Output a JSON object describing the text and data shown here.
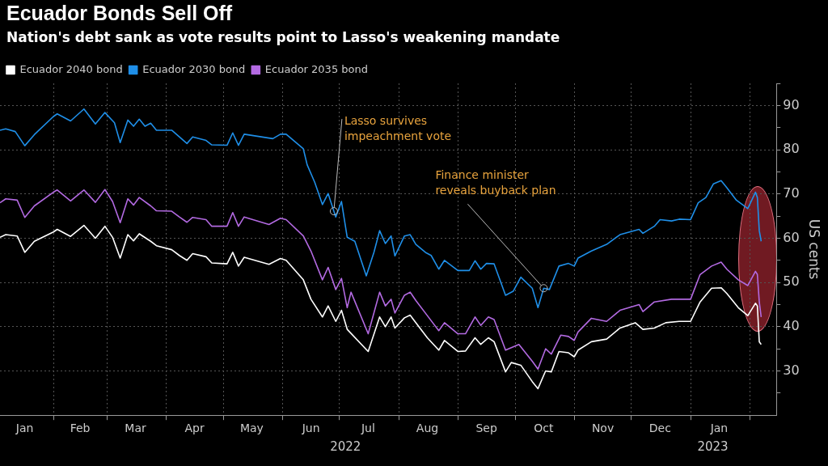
{
  "chart_data": {
    "type": "line",
    "title": "Ecuador Bonds Sell Off",
    "subtitle": "Nation's debt sank as vote results point to Lasso's weakening mandate",
    "ylabel": "US cents",
    "xlim": [
      "2022-01-04",
      "2023-02-15"
    ],
    "xticks": [
      {
        "value": "2022-01-17",
        "label": "Jan"
      },
      {
        "value": "2022-02-01",
        "label": null
      },
      {
        "value": "2022-02-15",
        "label": "Feb"
      },
      {
        "value": "2022-03-01",
        "label": null
      },
      {
        "value": "2022-03-16",
        "label": "Mar"
      },
      {
        "value": "2022-04-01",
        "label": null
      },
      {
        "value": "2022-04-16",
        "label": "Apr"
      },
      {
        "value": "2022-05-01",
        "label": null
      },
      {
        "value": "2022-05-16",
        "label": "May"
      },
      {
        "value": "2022-06-01",
        "label": null
      },
      {
        "value": "2022-06-16",
        "label": "Jun"
      },
      {
        "value": "2022-07-01",
        "label": null
      },
      {
        "value": "2022-07-16",
        "label": "Jul"
      },
      {
        "value": "2022-08-01",
        "label": null
      },
      {
        "value": "2022-08-16",
        "label": "Aug"
      },
      {
        "value": "2022-09-01",
        "label": null
      },
      {
        "value": "2022-09-16",
        "label": "Sep"
      },
      {
        "value": "2022-10-01",
        "label": null
      },
      {
        "value": "2022-10-16",
        "label": "Oct"
      },
      {
        "value": "2022-11-01",
        "label": null
      },
      {
        "value": "2022-11-16",
        "label": "Nov"
      },
      {
        "value": "2022-12-01",
        "label": null
      },
      {
        "value": "2022-12-16",
        "label": "Dec"
      },
      {
        "value": "2023-01-01",
        "label": null
      },
      {
        "value": "2023-01-16",
        "label": "Jan"
      },
      {
        "value": "2023-02-01",
        "label": null
      }
    ],
    "ylim": [
      20,
      95
    ],
    "yticks": [
      {
        "value": 25,
        "label": null
      },
      30,
      {
        "value": 35,
        "label": null
      },
      40,
      {
        "value": 45,
        "label": null
      },
      50,
      {
        "value": 55,
        "label": null
      },
      60,
      {
        "value": 65,
        "label": null
      },
      70,
      {
        "value": 75,
        "label": null
      },
      80,
      {
        "value": 85,
        "label": null
      },
      90,
      {
        "value": 95,
        "label": null
      }
    ],
    "grid": true,
    "legend": "top left",
    "marker": "none",
    "line_style": "solid",
    "series": [
      {
        "name": "Ecuador 2040 bond",
        "color": "#ffffff",
        "x": [
          "2022-01-04",
          "2022-01-07",
          "2022-01-13",
          "2022-01-17",
          "2022-01-22",
          "2022-02-01",
          "2022-02-03",
          "2022-02-10",
          "2022-02-17",
          "2022-02-23",
          "2022-02-28",
          "2022-03-04",
          "2022-03-08",
          "2022-03-12",
          "2022-03-15",
          "2022-03-18",
          "2022-03-24",
          "2022-03-27",
          "2022-04-04",
          "2022-04-08",
          "2022-04-12",
          "2022-04-15",
          "2022-04-22",
          "2022-04-25",
          "2022-05-03",
          "2022-05-06",
          "2022-05-09",
          "2022-05-12",
          "2022-05-25",
          "2022-05-31",
          "2022-06-03",
          "2022-06-12",
          "2022-06-16",
          "2022-06-22",
          "2022-06-25",
          "2022-06-29",
          "2022-07-02",
          "2022-07-05",
          "2022-07-16",
          "2022-07-22",
          "2022-07-25",
          "2022-07-28",
          "2022-07-30",
          "2022-08-04",
          "2022-08-07",
          "2022-08-16",
          "2022-08-22",
          "2022-08-25",
          "2022-09-01",
          "2022-09-05",
          "2022-09-10",
          "2022-09-13",
          "2022-09-17",
          "2022-09-20",
          "2022-09-26",
          "2022-09-29",
          "2022-10-04",
          "2022-10-10",
          "2022-10-13",
          "2022-10-17",
          "2022-10-20",
          "2022-10-24",
          "2022-10-29",
          "2022-11-01",
          "2022-11-03",
          "2022-11-10",
          "2022-11-18",
          "2022-11-25",
          "2022-12-03",
          "2022-12-07",
          "2022-12-13",
          "2022-12-19",
          "2022-12-26",
          "2023-01-01",
          "2023-01-06",
          "2023-01-12",
          "2023-01-17",
          "2023-01-20",
          "2023-01-26",
          "2023-01-31",
          "2023-02-04",
          "2023-02-05",
          "2023-02-06",
          "2023-02-07"
        ],
        "values": [
          60.2,
          60.8,
          60.5,
          56.8,
          59.3,
          61.4,
          62,
          60.4,
          62.9,
          60,
          62.7,
          60.2,
          55.5,
          60.8,
          59.4,
          61,
          59.3,
          58.3,
          57.4,
          56.1,
          55,
          56.5,
          55.8,
          54.4,
          54.2,
          56.8,
          53.7,
          55.7,
          54.1,
          55.4,
          55,
          50.6,
          46.2,
          42.2,
          44.7,
          41.2,
          43.7,
          39.4,
          34.4,
          42.2,
          40,
          42.2,
          39.7,
          42,
          42.6,
          37.5,
          34.7,
          36.9,
          34.4,
          34.5,
          37.5,
          36,
          37.5,
          36.6,
          29.8,
          31.9,
          31.3,
          27.6,
          26,
          30,
          29.8,
          34.4,
          34.1,
          33.2,
          34.7,
          36.6,
          37.2,
          39.7,
          40.9,
          39.4,
          39.7,
          40.9,
          41.2,
          41.2,
          45.6,
          48.7,
          48.8,
          47.5,
          44.3,
          42.5,
          45.3,
          44.7,
          36.6,
          36
        ]
      },
      {
        "name": "Ecuador 2030 bond",
        "color": "#1f8fe8",
        "x": [
          "2022-01-04",
          "2022-01-07",
          "2022-01-12",
          "2022-01-17",
          "2022-01-22",
          "2022-02-01",
          "2022-02-03",
          "2022-02-10",
          "2022-02-17",
          "2022-02-23",
          "2022-02-28",
          "2022-03-05",
          "2022-03-08",
          "2022-03-12",
          "2022-03-15",
          "2022-03-18",
          "2022-03-21",
          "2022-03-24",
          "2022-03-27",
          "2022-04-04",
          "2022-04-08",
          "2022-04-12",
          "2022-04-15",
          "2022-04-22",
          "2022-04-25",
          "2022-05-03",
          "2022-05-06",
          "2022-05-09",
          "2022-05-12",
          "2022-05-27",
          "2022-05-31",
          "2022-06-03",
          "2022-06-12",
          "2022-06-14",
          "2022-06-18",
          "2022-06-22",
          "2022-06-25",
          "2022-06-28",
          "2022-06-29",
          "2022-07-02",
          "2022-07-05",
          "2022-07-09",
          "2022-07-15",
          "2022-07-19",
          "2022-07-22",
          "2022-07-25",
          "2022-07-28",
          "2022-07-30",
          "2022-08-04",
          "2022-08-07",
          "2022-08-10",
          "2022-08-15",
          "2022-08-18",
          "2022-08-22",
          "2022-08-25",
          "2022-09-01",
          "2022-09-07",
          "2022-09-10",
          "2022-09-13",
          "2022-09-16",
          "2022-09-20",
          "2022-09-26",
          "2022-09-30",
          "2022-10-04",
          "2022-10-10",
          "2022-10-13",
          "2022-10-16",
          "2022-10-19",
          "2022-10-24",
          "2022-10-29",
          "2022-11-01",
          "2022-11-03",
          "2022-11-10",
          "2022-11-18",
          "2022-11-25",
          "2022-12-05",
          "2022-12-07",
          "2022-12-13",
          "2022-12-16",
          "2022-12-22",
          "2022-12-26",
          "2023-01-01",
          "2023-01-05",
          "2023-01-09",
          "2023-01-13",
          "2023-01-17",
          "2023-01-20",
          "2023-01-25",
          "2023-01-31",
          "2023-02-04",
          "2023-02-05",
          "2023-02-06",
          "2023-02-07"
        ],
        "values": [
          84.4,
          84.7,
          84.1,
          80.9,
          83.4,
          87.5,
          88.1,
          86.5,
          89.2,
          85.8,
          88.4,
          86.1,
          81.6,
          86.7,
          85.3,
          86.9,
          85.3,
          86,
          84.4,
          84.4,
          82.9,
          81.4,
          82.9,
          82.1,
          81.1,
          81,
          83.8,
          81,
          83.5,
          82.5,
          83.5,
          83.5,
          80.2,
          76.6,
          72.6,
          67.6,
          70.1,
          66.1,
          64.8,
          68.3,
          60.2,
          59.3,
          51.5,
          56.8,
          61.7,
          58.8,
          60.5,
          56,
          60.5,
          60.8,
          58.6,
          56.8,
          56.1,
          53,
          55,
          52.7,
          52.7,
          54.9,
          53,
          54.3,
          54.2,
          47.1,
          48,
          51.2,
          48.7,
          44.3,
          48.7,
          48.4,
          53.7,
          54.3,
          53.7,
          55.5,
          57.1,
          58.6,
          60.8,
          62,
          61.1,
          62.7,
          64.2,
          63.9,
          64.3,
          64.2,
          68,
          69.2,
          72.3,
          73,
          71.4,
          68.6,
          66.7,
          70.4,
          69.2,
          61.7,
          59.3
        ]
      },
      {
        "name": "Ecuador 2035 bond",
        "color": "#b36ae2",
        "x": [
          "2022-01-04",
          "2022-01-07",
          "2022-01-13",
          "2022-01-17",
          "2022-01-22",
          "2022-02-01",
          "2022-02-03",
          "2022-02-10",
          "2022-02-17",
          "2022-02-23",
          "2022-02-28",
          "2022-03-04",
          "2022-03-08",
          "2022-03-12",
          "2022-03-15",
          "2022-03-18",
          "2022-03-24",
          "2022-03-27",
          "2022-04-04",
          "2022-04-08",
          "2022-04-12",
          "2022-04-15",
          "2022-04-22",
          "2022-04-25",
          "2022-05-03",
          "2022-05-06",
          "2022-05-09",
          "2022-05-12",
          "2022-05-25",
          "2022-05-31",
          "2022-06-03",
          "2022-06-12",
          "2022-06-16",
          "2022-06-22",
          "2022-06-25",
          "2022-06-29",
          "2022-07-02",
          "2022-07-05",
          "2022-07-07",
          "2022-07-16",
          "2022-07-22",
          "2022-07-25",
          "2022-07-28",
          "2022-07-30",
          "2022-08-04",
          "2022-08-07",
          "2022-08-10",
          "2022-08-16",
          "2022-08-22",
          "2022-08-25",
          "2022-09-01",
          "2022-09-05",
          "2022-09-10",
          "2022-09-13",
          "2022-09-17",
          "2022-09-20",
          "2022-09-26",
          "2022-10-03",
          "2022-10-10",
          "2022-10-13",
          "2022-10-17",
          "2022-10-20",
          "2022-10-25",
          "2022-10-29",
          "2022-11-01",
          "2022-11-03",
          "2022-11-10",
          "2022-11-18",
          "2022-11-25",
          "2022-12-05",
          "2022-12-07",
          "2022-12-13",
          "2022-12-22",
          "2023-01-01",
          "2023-01-06",
          "2023-01-12",
          "2023-01-17",
          "2023-01-20",
          "2023-01-26",
          "2023-01-31",
          "2023-02-04",
          "2023-02-05",
          "2023-02-06",
          "2023-02-07"
        ],
        "values": [
          68,
          68.9,
          68.6,
          64.7,
          67.3,
          70.4,
          70.9,
          68.4,
          70.9,
          68.1,
          71,
          68.3,
          63.5,
          68.9,
          67.5,
          69.2,
          67.3,
          66.2,
          66.1,
          64.8,
          63.6,
          64.7,
          64.2,
          62.7,
          62.7,
          65.8,
          62.7,
          64.8,
          63.1,
          64.5,
          64.2,
          60.5,
          57.1,
          50.6,
          53.4,
          48.4,
          50.9,
          44.3,
          47.8,
          38.4,
          47.8,
          44.7,
          46.2,
          43.1,
          47.1,
          47.8,
          45.9,
          42.5,
          39.1,
          40.9,
          38.4,
          38.4,
          42.2,
          40.3,
          42.2,
          41.6,
          34.7,
          36,
          32.2,
          30.4,
          35,
          33.8,
          38.1,
          37.8,
          36.9,
          38.8,
          41.9,
          41.2,
          43.7,
          45,
          43.4,
          45.6,
          46.2,
          46.2,
          51.8,
          53.7,
          54.6,
          53,
          50.6,
          49.3,
          52.5,
          51.8,
          45.6,
          42.2
        ]
      }
    ],
    "annotations": [
      {
        "text": "Lasso survives impeachment vote",
        "x": "2022-06-28",
        "y": 66.1
      },
      {
        "text": "Finance minister reveals buyback plan",
        "x": "2022-10-16",
        "y": 48.7
      },
      "2022",
      "2023"
    ]
  }
}
